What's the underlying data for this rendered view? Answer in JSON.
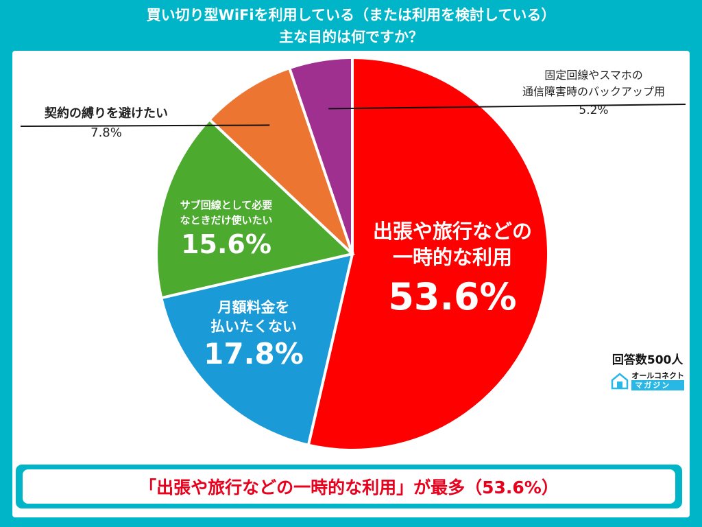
{
  "title_line1": "買い切り型WiFiを利用している（または利用を検討している）",
  "title_line2": "主な目的は何ですか？",
  "respondents": "回答数500人",
  "brand": {
    "name": "オールコネクト",
    "sub": "マガジン"
  },
  "conclusion": "「出張や旅行などの一時的な利用」が最多（53.6%）",
  "colors": {
    "background": "#00b5c8",
    "accent": "#e8001c"
  },
  "chart_data": {
    "type": "pie",
    "slices": [
      {
        "label_lines": [
          "出張や旅行などの",
          "一時的な利用"
        ],
        "value": 53.6,
        "value_label": "53.6%",
        "color": "#ff0000"
      },
      {
        "label_lines": [
          "月額料金を",
          "払いたくない"
        ],
        "value": 17.8,
        "value_label": "17.8%",
        "color": "#1a9ad6"
      },
      {
        "label_lines": [
          "サブ回線として必要",
          "なときだけ使いたい"
        ],
        "value": 15.6,
        "value_label": "15.6%",
        "color": "#4caa2e"
      },
      {
        "label_lines": [
          "契約の縛りを避けたい"
        ],
        "value": 7.8,
        "value_label": "7.8%",
        "color": "#ec7532"
      },
      {
        "label_lines": [
          "固定回線やスマホの",
          "通信障害時のバックアップ用"
        ],
        "value": 5.2,
        "value_label": "5.2%",
        "color": "#a0308f"
      }
    ]
  }
}
